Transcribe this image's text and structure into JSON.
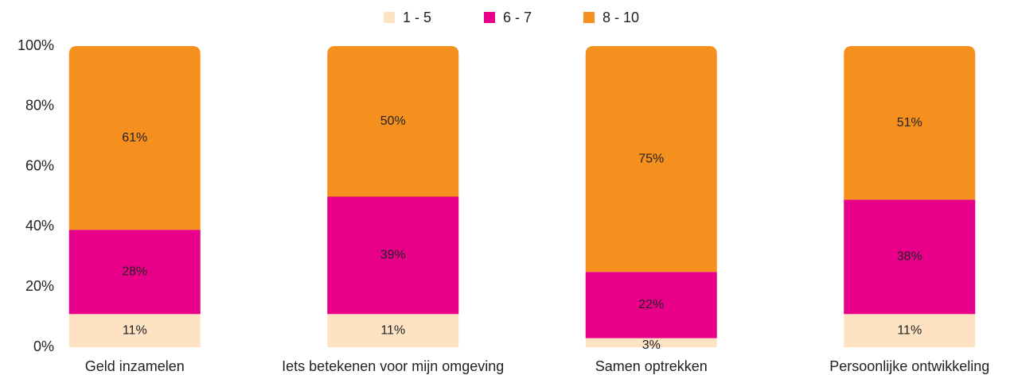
{
  "chart_data": {
    "type": "stacked_bar",
    "categories": [
      "Geld inzamelen",
      "Iets betekenen voor mijn omgeving",
      "Samen optrekken",
      "Persoonlijke ontwikkeling"
    ],
    "series": [
      {
        "name": "1 - 5",
        "color": "#fde3c4",
        "values": [
          11,
          11,
          3,
          11
        ],
        "value_labels": [
          "11%",
          "11%",
          "3%",
          "11%"
        ]
      },
      {
        "name": "6 - 7",
        "color": "#e8008a",
        "values": [
          28,
          39,
          22,
          38
        ],
        "value_labels": [
          "28%",
          "39%",
          "22%",
          "38%"
        ]
      },
      {
        "name": "8 - 10",
        "color": "#f5901e",
        "values": [
          61,
          50,
          75,
          51
        ],
        "value_labels": [
          "61%",
          "50%",
          "75%",
          "51%"
        ]
      }
    ],
    "ylim": [
      0,
      100
    ],
    "yticks": [
      {
        "value": 0,
        "label": "0%"
      },
      {
        "value": 20,
        "label": "20%"
      },
      {
        "value": 40,
        "label": "40%"
      },
      {
        "value": 60,
        "label": "60%"
      },
      {
        "value": 80,
        "label": "80%"
      },
      {
        "value": 100,
        "label": "100%"
      }
    ],
    "legend": "top"
  }
}
